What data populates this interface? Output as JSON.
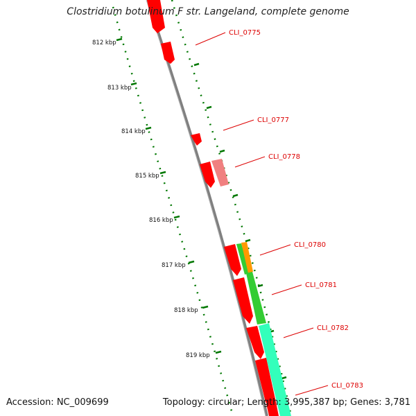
{
  "title": "Clostridium botulinum F str. Langeland, complete genome",
  "footer": {
    "accession": "Accession: NC_009699",
    "stats": "Topology: circular; Length: 3,995,387 bp; Genes: 3,781"
  },
  "ruler_labels": [
    "812 kbp",
    "813 kbp",
    "814 kbp",
    "815 kbp",
    "816 kbp",
    "817 kbp",
    "818 kbp",
    "819 kbp"
  ],
  "gene_labels": [
    "CLI_0775",
    "CLI_0777",
    "CLI_0778",
    "CLI_0780",
    "CLI_0781",
    "CLI_0782",
    "CLI_0783"
  ],
  "colors": {
    "gene_forward": "#ff0000",
    "gene_faded": "#f08080",
    "gene_green": "#33cc33",
    "gene_orange": "#ff9900",
    "gene_cyan": "#33ffbb",
    "backbone": "#808080",
    "ruler": "#007700",
    "label": "#dd0000"
  }
}
